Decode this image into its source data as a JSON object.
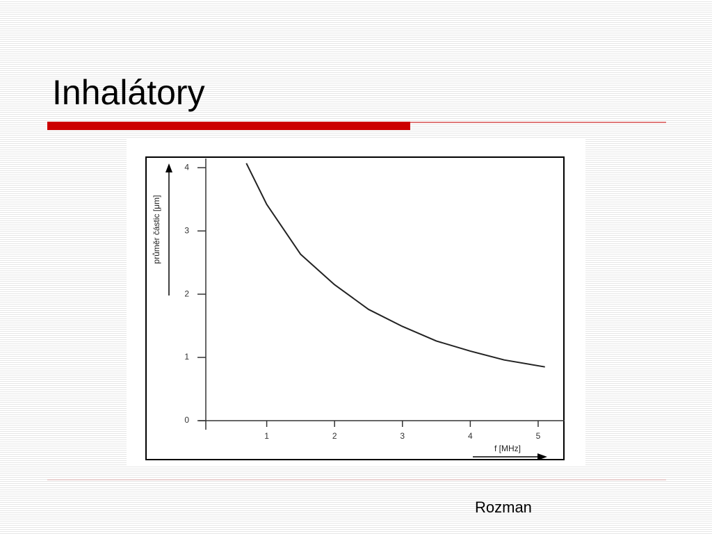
{
  "slide": {
    "title": "Inhalátory",
    "footer": "Rozman"
  },
  "chart_data": {
    "type": "line",
    "y_label": "průměr částic [μm]",
    "x_label": "f [MHz]",
    "x": [
      0.7,
      1,
      1.5,
      2,
      2.5,
      3,
      3.5,
      4,
      4.5,
      5.1
    ],
    "series": [
      {
        "name": null,
        "color": "#222222",
        "values": [
          4.07,
          3.42,
          2.63,
          2.15,
          1.76,
          1.49,
          1.26,
          1.1,
          0.96,
          0.85
        ]
      }
    ],
    "xlim": [
      0,
      5.4
    ],
    "ylim": [
      0,
      4.2
    ],
    "xticks": [
      1,
      2,
      3,
      4,
      5
    ],
    "yticks": [
      0,
      1,
      2,
      3,
      4
    ],
    "grid": false
  }
}
